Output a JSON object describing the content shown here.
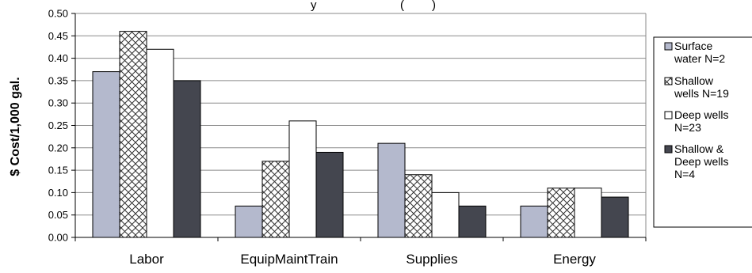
{
  "chart_data": {
    "type": "bar",
    "title": "",
    "title_partial": "y",
    "title_partial2": "(",
    "title_partial3": ")",
    "xlabel": "",
    "ylabel": "$ Cost/1,000 gal.",
    "ylim": [
      0,
      0.5
    ],
    "ytick_step": 0.05,
    "yticks": [
      "0.00",
      "0.05",
      "0.10",
      "0.15",
      "0.20",
      "0.25",
      "0.30",
      "0.35",
      "0.40",
      "0.45",
      "0.50"
    ],
    "grid": true,
    "legend_position": "right",
    "categories": [
      "Labor",
      "EquipMaintTrain",
      "Supplies",
      "Energy"
    ],
    "series": [
      {
        "name": "Surface water N=2",
        "legend_lines": [
          "Surface",
          "water N=2"
        ],
        "values": [
          0.37,
          0.07,
          0.21,
          0.07
        ],
        "color": "#b4b9cd",
        "pattern": "solid"
      },
      {
        "name": "Shallow wells N=19",
        "legend_lines": [
          "Shallow",
          "wells N=19"
        ],
        "values": [
          0.46,
          0.17,
          0.14,
          0.11
        ],
        "color": "#ffffff",
        "pattern": "crosshatch"
      },
      {
        "name": "Deep wells N=23",
        "legend_lines": [
          "Deep wells",
          "N=23"
        ],
        "values": [
          0.42,
          0.26,
          0.1,
          0.11
        ],
        "color": "#ffffff",
        "pattern": "solid"
      },
      {
        "name": "Shallow & Deep wells N=4",
        "legend_lines": [
          "Shallow &",
          "Deep wells",
          "N=4"
        ],
        "values": [
          0.35,
          0.19,
          0.07,
          0.09
        ],
        "color": "#44464f",
        "pattern": "solid"
      }
    ]
  }
}
